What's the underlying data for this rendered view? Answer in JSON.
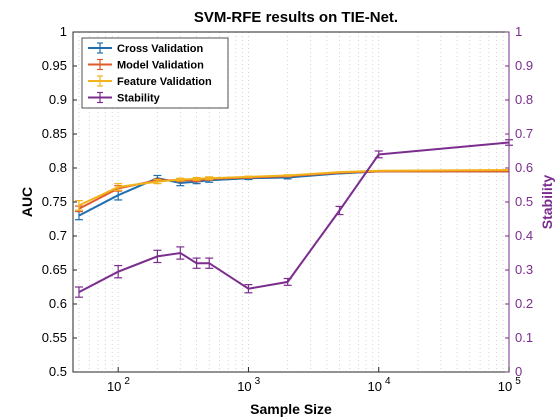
{
  "colors": {
    "cross_validation": "#1f6fb0",
    "model_validation": "#e05a28",
    "feature_validation": "#f2b21b",
    "stability": "#7b2d8e",
    "right_axis": "#7b2d8e",
    "grid": "#c8c8c8"
  },
  "chart_data": {
    "type": "line",
    "title": "SVM-RFE results on TIE-Net.",
    "xlabel": "Sample Size",
    "ylabel": "AUC",
    "ylabel_right": "Stability",
    "xscale": "log",
    "xlim": [
      45,
      100000
    ],
    "ylim": [
      0.5,
      1
    ],
    "ylim_right": [
      0,
      1
    ],
    "x_ticks": [
      {
        "value": 100,
        "base": "10",
        "exp": "2"
      },
      {
        "value": 1000,
        "base": "10",
        "exp": "3"
      },
      {
        "value": 10000,
        "base": "10",
        "exp": "4"
      },
      {
        "value": 100000,
        "base": "10",
        "exp": "5"
      }
    ],
    "y_ticks": [
      "0.5",
      "0.55",
      "0.6",
      "0.65",
      "0.7",
      "0.75",
      "0.8",
      "0.85",
      "0.9",
      "0.95",
      "1"
    ],
    "y_ticks_right": [
      "0",
      "0.1",
      "0.2",
      "0.3",
      "0.4",
      "0.5",
      "0.6",
      "0.7",
      "0.8",
      "0.9",
      "1"
    ],
    "grid": "vertical dotted (log minor)",
    "legend_position": "top-left",
    "x": [
      50,
      100,
      200,
      300,
      400,
      500,
      1000,
      2000,
      5000,
      10000,
      100000
    ],
    "series": [
      {
        "name": "Cross Validation",
        "axis": "left",
        "color": "#1f6fb0",
        "values": [
          0.73,
          0.76,
          0.785,
          0.778,
          0.78,
          0.782,
          0.785,
          0.786,
          0.792,
          0.795,
          0.795
        ],
        "errors": [
          0.006,
          0.007,
          0.004,
          0.004,
          0.003,
          0.003,
          0.002,
          0.002,
          0.0,
          0.0,
          0.0
        ]
      },
      {
        "name": "Model Validation",
        "axis": "left",
        "color": "#e05a28",
        "values": [
          0.74,
          0.77,
          0.782,
          0.782,
          0.782,
          0.784,
          0.786,
          0.788,
          0.793,
          0.795,
          0.795
        ],
        "errors": [
          0.004,
          0.004,
          0.002,
          0.002,
          0.002,
          0.002,
          0.001,
          0.001,
          0.0,
          0.0,
          0.0
        ]
      },
      {
        "name": "Feature Validation",
        "axis": "left",
        "color": "#f2b21b",
        "values": [
          0.745,
          0.772,
          0.78,
          0.783,
          0.784,
          0.785,
          0.787,
          0.789,
          0.794,
          0.796,
          0.797
        ],
        "errors": [
          0.007,
          0.005,
          0.003,
          0.002,
          0.002,
          0.002,
          0.001,
          0.001,
          0.0,
          0.0,
          0.0
        ]
      },
      {
        "name": "Stability",
        "axis": "right",
        "color": "#7b2d8e",
        "values": [
          0.235,
          0.295,
          0.34,
          0.35,
          0.32,
          0.32,
          0.245,
          0.265,
          0.475,
          0.64,
          0.675
        ],
        "errors": [
          0.015,
          0.018,
          0.018,
          0.018,
          0.015,
          0.015,
          0.012,
          0.01,
          0.012,
          0.01,
          0.008
        ]
      }
    ]
  }
}
